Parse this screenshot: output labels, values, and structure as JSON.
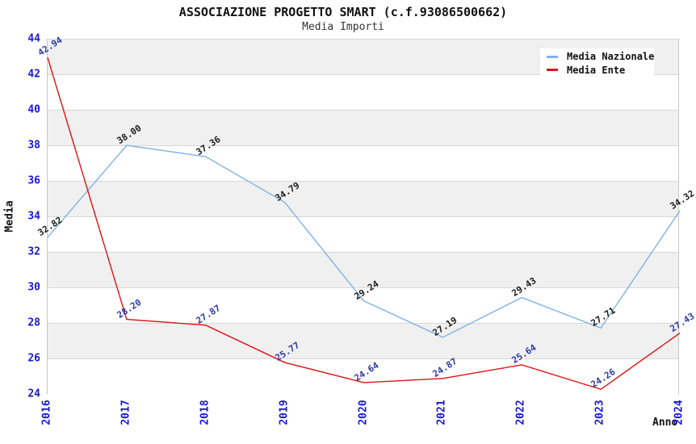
{
  "header": {
    "title": "ASSOCIAZIONE PROGETTO SMART (c.f.93086500662)",
    "subtitle": "Media Importi"
  },
  "chart_data": {
    "type": "line",
    "x": [
      "2016",
      "2017",
      "2018",
      "2019",
      "2020",
      "2021",
      "2022",
      "2023",
      "2024"
    ],
    "xlabel": "Anno",
    "ylabel": "Media",
    "ylim": [
      24,
      44
    ],
    "ytick_step": 2,
    "grid": true,
    "alternating_bands": true,
    "legend_position": "top-right",
    "series": [
      {
        "name": "Media Nazionale",
        "color": "#7db3e8",
        "label_color": "#1a1a1a",
        "values": [
          32.82,
          38.0,
          37.36,
          34.79,
          29.24,
          27.19,
          29.43,
          27.71,
          34.32
        ]
      },
      {
        "name": "Media Ente",
        "color": "#e01212",
        "label_color": "#2b3aa6",
        "values": [
          42.94,
          28.2,
          27.87,
          25.77,
          24.64,
          24.87,
          25.64,
          24.26,
          27.43
        ]
      }
    ]
  },
  "colors": {
    "tick_label": "#1717d1",
    "band_gray": "#f0f0f0",
    "band_white": "#ffffff",
    "gridline": "#d8d8d8",
    "axis_spine": "#c8c8c8",
    "text": "#111111",
    "legend_bg": "#ffffff"
  }
}
